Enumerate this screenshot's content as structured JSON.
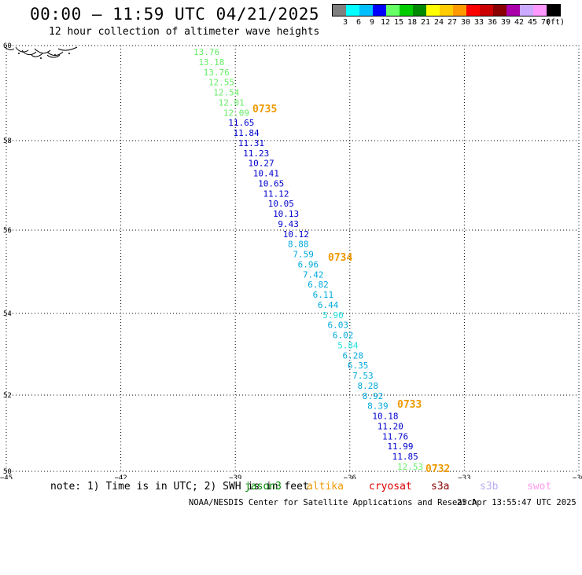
{
  "header": {
    "title": "00:00 – 11:59 UTC 04/21/2025",
    "subtitle": "12 hour collection of altimeter wave heights"
  },
  "legend": {
    "colors": [
      "#7f7f7f",
      "#00ffff",
      "#00bfff",
      "#0000ff",
      "#66ff66",
      "#00cc00",
      "#008800",
      "#ffff00",
      "#ffcc00",
      "#ff9900",
      "#ff0000",
      "#cc0000",
      "#880000",
      "#aa00aa",
      "#ccaaff",
      "#ff99ff",
      "#000000"
    ],
    "labels": [
      "3",
      "6",
      "9",
      "12",
      "15",
      "18",
      "21",
      "24",
      "27",
      "30",
      "33",
      "36",
      "39",
      "42",
      "45",
      "70",
      "(ft)"
    ]
  },
  "map": {
    "lon_range": [
      -45,
      -30
    ],
    "lat_range": [
      50,
      60
    ],
    "lon_ticks": [
      "−45",
      "−42",
      "−39",
      "−36",
      "−33",
      "−30"
    ],
    "lat_ticks": [
      "60",
      "58",
      "56",
      "54",
      "52",
      "50"
    ],
    "track": [
      {
        "v": "13.76",
        "c": "#66ee66"
      },
      {
        "v": "13.18",
        "c": "#66ee66"
      },
      {
        "v": "13.76",
        "c": "#66ee66"
      },
      {
        "v": "12.55",
        "c": "#66ee66"
      },
      {
        "v": "12.54",
        "c": "#66ee66"
      },
      {
        "v": "12.01",
        "c": "#66ee66"
      },
      {
        "v": "12.09",
        "c": "#66ee66"
      },
      {
        "v": "11.65",
        "c": "#0000cc"
      },
      {
        "v": "11.84",
        "c": "#0000cc"
      },
      {
        "v": "11.31",
        "c": "#0000cc"
      },
      {
        "v": "11.23",
        "c": "#0000cc"
      },
      {
        "v": "10.27",
        "c": "#0000cc"
      },
      {
        "v": "10.41",
        "c": "#0000cc"
      },
      {
        "v": "10.65",
        "c": "#0000cc"
      },
      {
        "v": "11.12",
        "c": "#0000cc"
      },
      {
        "v": "10.05",
        "c": "#0000cc"
      },
      {
        "v": "10.13",
        "c": "#0000cc"
      },
      {
        "v": "9.43",
        "c": "#0000cc"
      },
      {
        "v": "10.12",
        "c": "#0000cc"
      },
      {
        "v": "8.88",
        "c": "#00aadd"
      },
      {
        "v": "7.59",
        "c": "#00aadd"
      },
      {
        "v": "6.96",
        "c": "#00aadd"
      },
      {
        "v": "7.42",
        "c": "#00aadd"
      },
      {
        "v": "6.82",
        "c": "#00aadd"
      },
      {
        "v": "6.11",
        "c": "#00aadd"
      },
      {
        "v": "6.44",
        "c": "#00aadd"
      },
      {
        "v": "5.90",
        "c": "#22dddd"
      },
      {
        "v": "6.03",
        "c": "#00aadd"
      },
      {
        "v": "6.02",
        "c": "#00aadd"
      },
      {
        "v": "5.84",
        "c": "#22dddd"
      },
      {
        "v": "6.28",
        "c": "#00aadd"
      },
      {
        "v": "6.35",
        "c": "#00aadd"
      },
      {
        "v": "7.53",
        "c": "#00aadd"
      },
      {
        "v": "8.28",
        "c": "#00aadd"
      },
      {
        "v": "8.92",
        "c": "#00aadd"
      },
      {
        "v": "8.39",
        "c": "#00aadd"
      },
      {
        "v": "10.18",
        "c": "#0000cc"
      },
      {
        "v": "11.20",
        "c": "#0000cc"
      },
      {
        "v": "11.76",
        "c": "#0000cc"
      },
      {
        "v": "11.99",
        "c": "#0000cc"
      },
      {
        "v": "11.85",
        "c": "#0000cc"
      },
      {
        "v": "12.53",
        "c": "#66ee66"
      }
    ],
    "time_labels": [
      "0735",
      "0734",
      "0733",
      "0732"
    ],
    "time_label_color": "#ee9900"
  },
  "note": {
    "text": "note: 1) Time is in UTC; 2) SWH is in feet",
    "missions": [
      {
        "name": "jason3",
        "color": "#008800"
      },
      {
        "name": "altika",
        "color": "#ee9900"
      },
      {
        "name": "cryosat",
        "color": "#dd0000"
      },
      {
        "name": "s3a",
        "color": "#880000"
      },
      {
        "name": "s3b",
        "color": "#bbaaee"
      },
      {
        "name": "swot",
        "color": "#ff99ee"
      }
    ]
  },
  "footer": {
    "credit": "NOAA/NESDIS Center for Satellite Applications and Research",
    "timestamp": "25 Apr 13:55:47 UTC 2025"
  }
}
